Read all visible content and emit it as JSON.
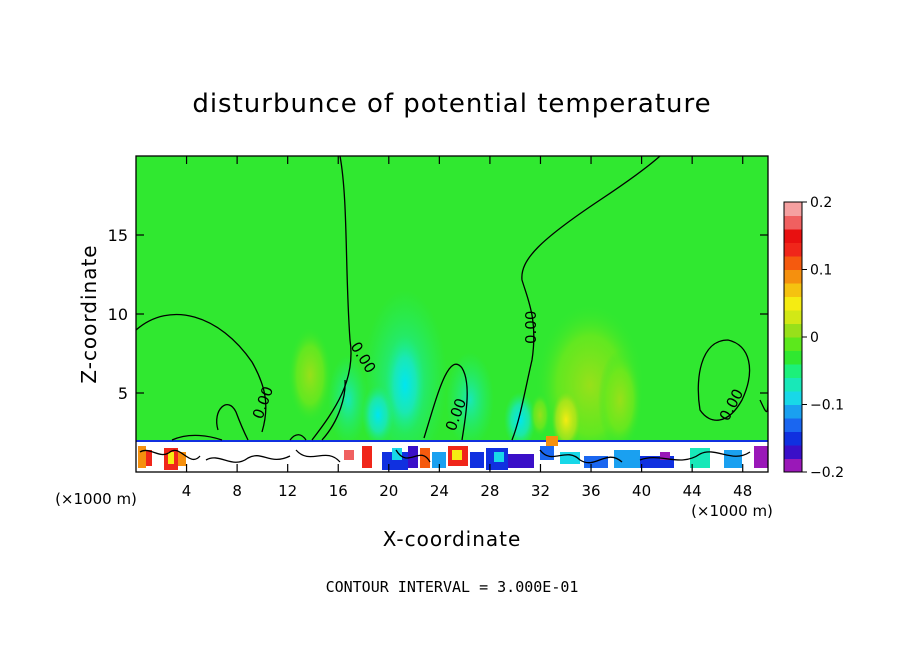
{
  "chart_data": {
    "type": "heatmap",
    "title": "disturbunce of potential temperature",
    "xlabel": "X-coordinate",
    "ylabel": "Z-coordinate",
    "x_unit_left": "(×1000 m)",
    "x_unit_right": "(×1000 m)",
    "xlim": [
      0,
      50
    ],
    "ylim": [
      0,
      20
    ],
    "x_ticks": [
      4,
      8,
      12,
      16,
      20,
      24,
      28,
      32,
      36,
      40,
      44,
      48
    ],
    "x_tick_labels": [
      "4",
      "8",
      "12",
      "16",
      "20",
      "24",
      "28",
      "32",
      "36",
      "40",
      "44",
      "48"
    ],
    "y_ticks": [
      5,
      10,
      15
    ],
    "y_tick_labels": [
      "5",
      "10",
      "15"
    ],
    "colorbar": {
      "range": [
        -0.2,
        0.2
      ],
      "ticks": [
        0.2,
        0.1,
        0,
        -0.1,
        -0.2
      ],
      "tick_labels": [
        "0.2",
        "0.1",
        "0",
        "−0.1",
        "−0.2"
      ],
      "colors": [
        "#9a18b8",
        "#3a0fc8",
        "#1030e0",
        "#1a66f0",
        "#1aa0f0",
        "#18d8e8",
        "#18e8b8",
        "#1cf07a",
        "#30e830",
        "#5ce81c",
        "#98e01a",
        "#d2e816",
        "#f5ec12",
        "#f5c210",
        "#f5900e",
        "#f55a0e",
        "#f0261a",
        "#e81010",
        "#f06060",
        "#f5a0a0"
      ]
    },
    "contour_labels": [
      "0.00",
      "0.00",
      "0.00",
      "0.00",
      "0.00"
    ],
    "footer": "CONTOUR INTERVAL = 3.000E-01"
  }
}
